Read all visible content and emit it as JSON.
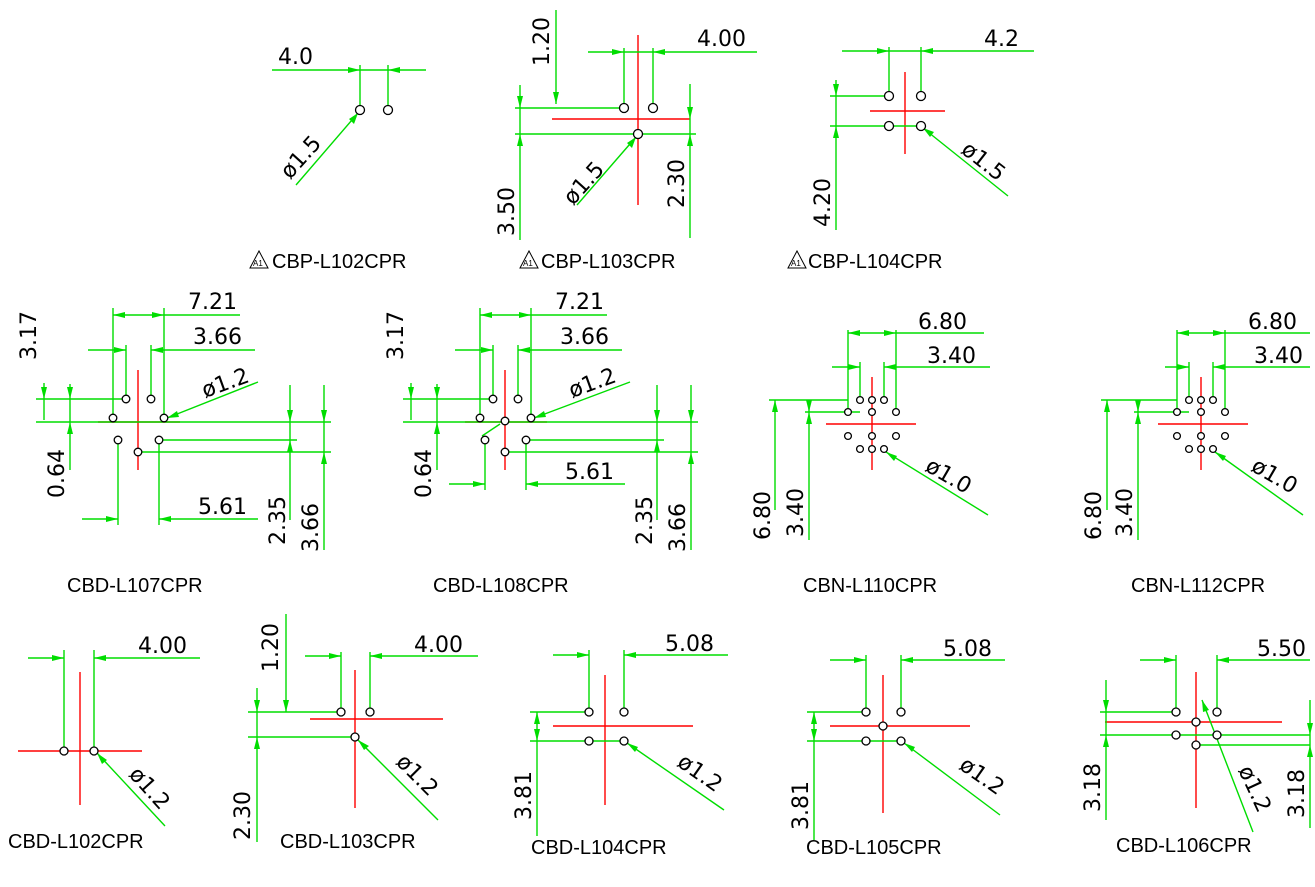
{
  "colors": {
    "dimension": "#00dd00",
    "centerline": "#ff0000",
    "hole": "#000000",
    "text": "#000000",
    "background": "#ffffff"
  },
  "icons": {
    "revision": "revision-triangle-icon",
    "revision_text": "A1"
  },
  "diagrams": {
    "p1": {
      "label": "CBP-L102CPR",
      "dims": [
        "4.0",
        "ø1.5"
      ]
    },
    "p2": {
      "label": "CBP-L103CPR",
      "dims": [
        "4.00",
        "1.20",
        "3.50",
        "ø1.5",
        "2.30"
      ]
    },
    "p3": {
      "label": "CBP-L104CPR",
      "dims": [
        "4.2",
        "4.20",
        "ø1.5"
      ]
    },
    "p4": {
      "label": "CBD-L107CPR",
      "dims": [
        "7.21",
        "3.66",
        "ø1.2",
        "3.17",
        "0.64",
        "5.61",
        "2.35",
        "3.66"
      ]
    },
    "p5": {
      "label": "CBD-L108CPR",
      "dims": [
        "7.21",
        "3.66",
        "ø1.2",
        "3.17",
        "0.64",
        "5.61",
        "2.35",
        "3.66"
      ]
    },
    "p6": {
      "label": "CBN-L110CPR",
      "dims": [
        "6.80",
        "3.40",
        "6.80",
        "3.40",
        "ø1.0"
      ]
    },
    "p7": {
      "label": "CBN-L112CPR",
      "dims": [
        "6.80",
        "3.40",
        "6.80",
        "3.40",
        "ø1.0"
      ]
    },
    "p8": {
      "label": "CBD-L102CPR",
      "dims": [
        "4.00",
        "ø1.2"
      ]
    },
    "p9": {
      "label": "CBD-L103CPR",
      "dims": [
        "4.00",
        "1.20",
        "2.30",
        "ø1.2"
      ]
    },
    "p10": {
      "label": "CBD-L104CPR",
      "dims": [
        "5.08",
        "3.81",
        "ø1.2"
      ]
    },
    "p11": {
      "label": "CBD-L105CPR",
      "dims": [
        "5.08",
        "3.81",
        "ø1.2"
      ]
    },
    "p12": {
      "label": "CBD-L106CPR",
      "dims": [
        "5.50",
        "3.18",
        "ø1.2",
        "3.18"
      ]
    }
  }
}
